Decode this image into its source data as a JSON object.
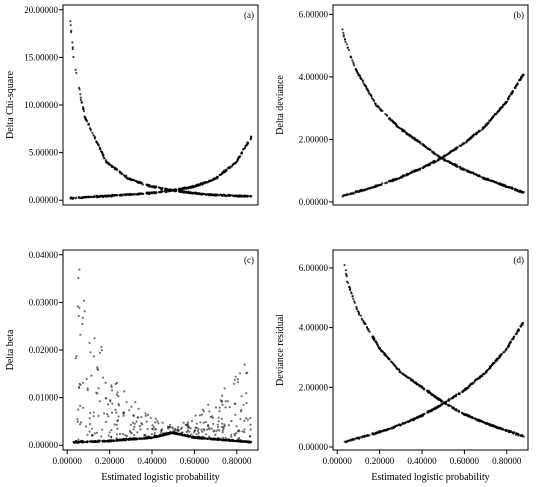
{
  "chart_data": [
    {
      "panel": "(a)",
      "type": "scatter",
      "xlabel": "",
      "ylabel": "Delta Chi-square",
      "xlim": [
        0.0,
        0.9
      ],
      "ylim": [
        -0.5,
        20.5
      ],
      "yticks": [
        "0.00000",
        "5.00000",
        "10.00000",
        "15.00000",
        "20.00000"
      ],
      "ytick_values": [
        0,
        5,
        10,
        15,
        20
      ],
      "xticks": [],
      "series": [
        {
          "values": "decreasing branch: x from 0.03 (y≈20.0) to 0.87 (y≈0.4), y ≈ (1-x)/x"
        },
        {
          "values": "increasing branch: x from 0.03 (y≈0.2) to 0.87 (y≈6.7), y ≈ x/(1-x)"
        }
      ],
      "x": [
        0.03,
        0.05,
        0.1,
        0.2,
        0.3,
        0.4,
        0.5,
        0.6,
        0.7,
        0.8,
        0.87
      ],
      "y_decreasing": [
        20.0,
        14.5,
        8.8,
        4.0,
        2.3,
        1.5,
        1.05,
        0.75,
        0.55,
        0.45,
        0.4
      ],
      "y_increasing": [
        0.2,
        0.25,
        0.3,
        0.45,
        0.6,
        0.75,
        1.0,
        1.4,
        2.2,
        4.0,
        6.7
      ]
    },
    {
      "panel": "(b)",
      "type": "scatter",
      "xlabel": "",
      "ylabel": "Delta deviance",
      "xlim": [
        0.0,
        0.9
      ],
      "ylim": [
        -0.1,
        6.3
      ],
      "yticks": [
        "0.00000",
        "2.00000",
        "4.00000",
        "6.00000"
      ],
      "ytick_values": [
        0,
        2,
        4,
        6
      ],
      "xticks": [],
      "x": [
        0.03,
        0.05,
        0.1,
        0.2,
        0.3,
        0.4,
        0.5,
        0.6,
        0.7,
        0.8,
        0.88
      ],
      "y_decreasing": [
        6.1,
        5.3,
        4.3,
        3.1,
        2.4,
        1.9,
        1.4,
        1.05,
        0.75,
        0.5,
        0.3
      ],
      "y_increasing": [
        0.15,
        0.2,
        0.3,
        0.5,
        0.75,
        1.05,
        1.4,
        1.85,
        2.4,
        3.2,
        4.1
      ]
    },
    {
      "panel": "(c)",
      "type": "scatter",
      "xlabel": "Estimated logistic probability",
      "ylabel": "Delta beta",
      "xlim": [
        -0.02,
        0.9
      ],
      "ylim": [
        -0.001,
        0.041
      ],
      "yticks": [
        "0.00000",
        "0.01000",
        "0.02000",
        "0.03000",
        "0.04000"
      ],
      "ytick_values": [
        0,
        0.01,
        0.02,
        0.03,
        0.04
      ],
      "xticks": [
        "0.00000",
        "0.20000",
        "0.40000",
        "0.60000",
        "0.80000"
      ],
      "xtick_values": [
        0,
        0.2,
        0.4,
        0.6,
        0.8
      ],
      "baseline": {
        "x": [
          0.03,
          0.2,
          0.4,
          0.5,
          0.6,
          0.8,
          0.87
        ],
        "y": [
          0.0005,
          0.0008,
          0.0015,
          0.0025,
          0.0015,
          0.0008,
          0.0005
        ]
      },
      "scatter_peaks": {
        "x": [
          0.05,
          0.1,
          0.2,
          0.3,
          0.4,
          0.5,
          0.6,
          0.7,
          0.8,
          0.85
        ],
        "y": [
          0.04,
          0.03,
          0.015,
          0.01,
          0.006,
          0.004,
          0.006,
          0.01,
          0.015,
          0.018
        ]
      }
    },
    {
      "panel": "(d)",
      "type": "scatter",
      "xlabel": "Estimated logistic probability",
      "ylabel": "Deviance residual",
      "xlim": [
        -0.02,
        0.9
      ],
      "ylim": [
        -0.1,
        6.6
      ],
      "yticks": [
        "0.00000",
        "2.00000",
        "4.00000",
        "6.00000"
      ],
      "ytick_values": [
        0,
        2,
        4,
        6
      ],
      "xticks": [
        "0.00000",
        "0.20000",
        "0.40000",
        "0.60000",
        "0.80000"
      ],
      "xtick_values": [
        0,
        0.2,
        0.4,
        0.6,
        0.8
      ],
      "x": [
        0.03,
        0.05,
        0.1,
        0.2,
        0.3,
        0.4,
        0.5,
        0.6,
        0.7,
        0.8,
        0.88
      ],
      "y_decreasing": [
        6.3,
        5.5,
        4.5,
        3.3,
        2.5,
        2.0,
        1.5,
        1.1,
        0.8,
        0.55,
        0.35
      ],
      "y_increasing": [
        0.15,
        0.2,
        0.3,
        0.5,
        0.75,
        1.05,
        1.45,
        1.9,
        2.5,
        3.3,
        4.2
      ]
    }
  ]
}
